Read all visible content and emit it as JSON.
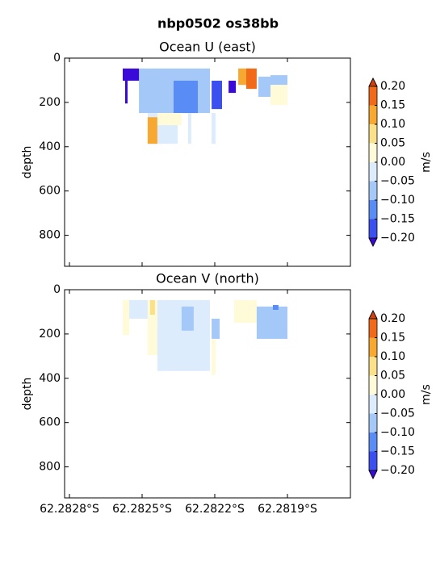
{
  "title": "nbp0502 os38bb",
  "chart_data": [
    {
      "type": "contour",
      "title": "Ocean U (east)",
      "ylabel": "depth",
      "xlim": [
        -62.28282,
        -62.28164
      ],
      "ylim": [
        940,
        0
      ],
      "xticks": [
        -62.2828,
        -62.2825,
        -62.2822,
        -62.2819
      ],
      "yticks": [
        0,
        200,
        400,
        600,
        800
      ],
      "colorbar": {
        "label": "m/s",
        "levels": [
          {
            "value": -0.2,
            "label": "−0.20"
          },
          {
            "value": -0.15,
            "label": "−0.15"
          },
          {
            "value": -0.1,
            "label": "−0.10"
          },
          {
            "value": -0.05,
            "label": "−0.05"
          },
          {
            "value": 0,
            "label": "0.00"
          },
          {
            "value": 0.05,
            "label": "0.05"
          },
          {
            "value": 0.1,
            "label": "0.10"
          },
          {
            "value": 0.15,
            "label": "0.15"
          },
          {
            "value": 0.2,
            "label": "0.20"
          }
        ],
        "colors": [
          "#3c50f0",
          "#5a8cf5",
          "#a4c8f8",
          "#dcecfc",
          "#fffbd8",
          "#fbe08a",
          "#f6a830",
          "#f06a1a"
        ],
        "under": "#3a0ad8",
        "over": "#d04010"
      },
      "cells": [
        {
          "x": [
            -62.282513,
            -62.28222
          ],
          "depth": [
            47,
            248
          ],
          "value": -0.07
        },
        {
          "x": [
            -62.282477,
            -62.282353
          ],
          "depth": [
            248,
            387
          ],
          "value": -0.03
        },
        {
          "x": [
            -62.28237,
            -62.28227
          ],
          "depth": [
            102,
            248
          ],
          "value": -0.12
        },
        {
          "x": [
            -62.28258,
            -62.282513
          ],
          "depth": [
            47,
            102
          ],
          "value": -0.25
        },
        {
          "x": [
            -62.28257,
            -62.28256
          ],
          "depth": [
            102,
            205
          ],
          "value": -0.25
        },
        {
          "x": [
            -62.282477,
            -62.282437
          ],
          "depth": [
            267,
            387
          ],
          "value": 0.12
        },
        {
          "x": [
            -62.282437,
            -62.282337
          ],
          "depth": [
            248,
            303
          ],
          "value": 0.03
        },
        {
          "x": [
            -62.28231,
            -62.282297
          ],
          "depth": [
            248,
            387
          ],
          "value": -0.03
        },
        {
          "x": [
            -62.282213,
            -62.282197
          ],
          "depth": [
            248,
            387
          ],
          "value": -0.03
        },
        {
          "x": [
            -62.282213,
            -62.28217
          ],
          "depth": [
            102,
            230
          ],
          "value": -0.17
        },
        {
          "x": [
            -62.282143,
            -62.282113
          ],
          "depth": [
            102,
            157
          ],
          "value": -0.25
        },
        {
          "x": [
            -62.282103,
            -62.282053
          ],
          "depth": [
            47,
            121
          ],
          "value": 0.13
        },
        {
          "x": [
            -62.28207,
            -62.282027
          ],
          "depth": [
            47,
            139
          ],
          "value": 0.18
        },
        {
          "x": [
            -62.28202,
            -62.28197
          ],
          "depth": [
            84,
            175
          ],
          "value": -0.07
        },
        {
          "x": [
            -62.28197,
            -62.2819
          ],
          "depth": [
            77,
            121
          ],
          "value": -0.07
        },
        {
          "x": [
            -62.28197,
            -62.2819
          ],
          "depth": [
            121,
            212
          ],
          "value": 0.04
        }
      ]
    },
    {
      "type": "contour",
      "title": "Ocean V (north)",
      "ylabel": "depth",
      "xlim": [
        -62.28282,
        -62.28164
      ],
      "ylim": [
        940,
        0
      ],
      "xticks": [
        {
          "value": -62.2828,
          "label": "62.2828°S"
        },
        {
          "value": -62.2825,
          "label": "62.2825°S"
        },
        {
          "value": -62.2822,
          "label": "62.2822°S"
        },
        {
          "value": -62.2819,
          "label": "62.2819°S"
        }
      ],
      "yticks": [
        0,
        200,
        400,
        600,
        800
      ],
      "colorbar": {
        "label": "m/s",
        "levels": [
          {
            "value": -0.2,
            "label": "−0.20"
          },
          {
            "value": -0.15,
            "label": "−0.15"
          },
          {
            "value": -0.1,
            "label": "−0.10"
          },
          {
            "value": -0.05,
            "label": "−0.05"
          },
          {
            "value": 0,
            "label": "0.00"
          },
          {
            "value": 0.05,
            "label": "0.05"
          },
          {
            "value": 0.1,
            "label": "0.10"
          },
          {
            "value": 0.15,
            "label": "0.15"
          },
          {
            "value": 0.2,
            "label": "0.20"
          }
        ],
        "colors": [
          "#3c50f0",
          "#5a8cf5",
          "#a4c8f8",
          "#dcecfc",
          "#fffbd8",
          "#fbe08a",
          "#f6a830",
          "#f06a1a"
        ],
        "under": "#3a0ad8",
        "over": "#d04010"
      },
      "cells": [
        {
          "x": [
            -62.28258,
            -62.282553
          ],
          "depth": [
            47,
            204
          ],
          "value": 0.03
        },
        {
          "x": [
            -62.282553,
            -62.282477
          ],
          "depth": [
            47,
            131
          ],
          "value": -0.03
        },
        {
          "x": [
            -62.282477,
            -62.282437
          ],
          "depth": [
            47,
            295
          ],
          "value": 0.04
        },
        {
          "x": [
            -62.282467,
            -62.282447
          ],
          "depth": [
            47,
            113
          ],
          "value": 0.08
        },
        {
          "x": [
            -62.282437,
            -62.28222
          ],
          "depth": [
            47,
            367
          ],
          "value": -0.04
        },
        {
          "x": [
            -62.282337,
            -62.282287
          ],
          "depth": [
            76,
            185
          ],
          "value": -0.08
        },
        {
          "x": [
            -62.282213,
            -62.28218
          ],
          "depth": [
            131,
            222
          ],
          "value": -0.08
        },
        {
          "x": [
            -62.282213,
            -62.282197
          ],
          "depth": [
            222,
            385
          ],
          "value": 0.03
        },
        {
          "x": [
            -62.28212,
            -62.282027
          ],
          "depth": [
            47,
            149
          ],
          "value": 0.03
        },
        {
          "x": [
            -62.282027,
            -62.2819
          ],
          "depth": [
            76,
            222
          ],
          "value": -0.06
        },
        {
          "x": [
            -62.28196,
            -62.281937
          ],
          "depth": [
            69,
            91
          ],
          "value": -0.12
        }
      ]
    }
  ]
}
